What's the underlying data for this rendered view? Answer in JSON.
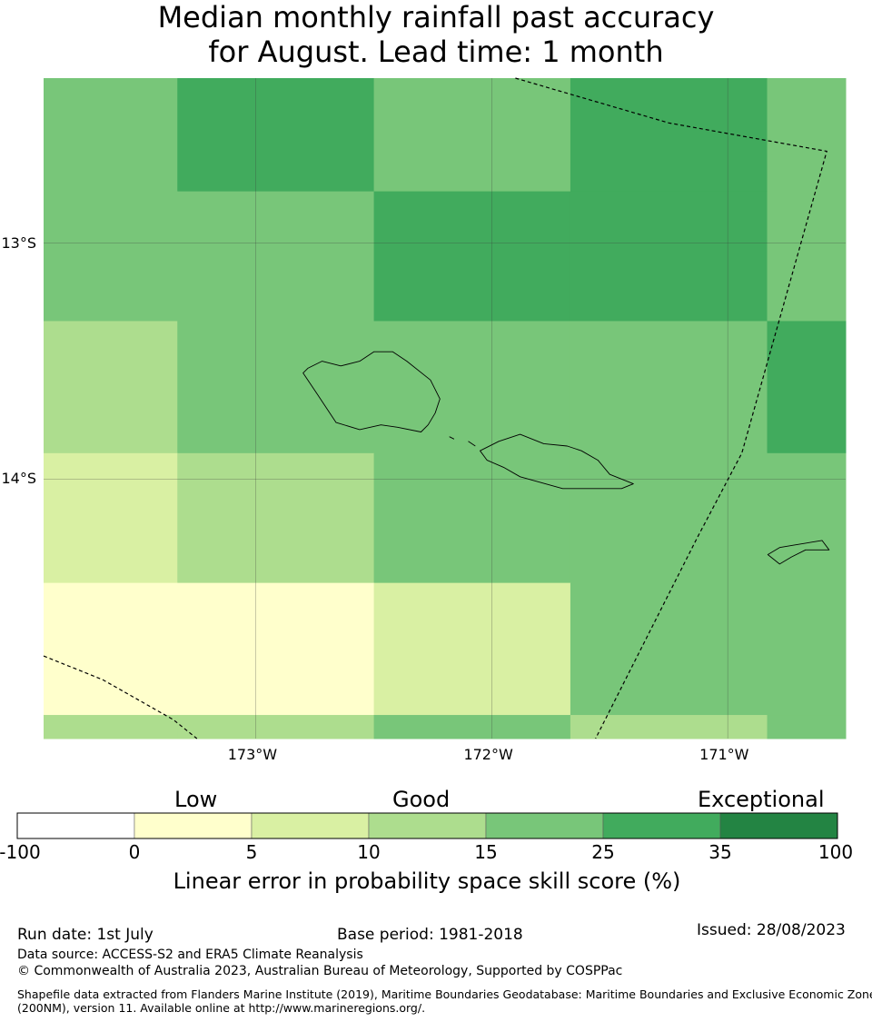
{
  "title": {
    "line1": "Median monthly rainfall past accuracy",
    "line2": "for August. Lead time: 1 month"
  },
  "map": {
    "extent_lon": [
      -173.9,
      -170.5
    ],
    "extent_lat": [
      -15.1,
      -12.3
    ],
    "lat_ticks": [
      {
        "value": -13,
        "label": "13°S"
      },
      {
        "value": -14,
        "label": "14°S"
      }
    ],
    "lon_ticks": [
      {
        "value": -173,
        "label": "173°W"
      },
      {
        "value": -172,
        "label": "172°W"
      },
      {
        "value": -171,
        "label": "171°W"
      }
    ],
    "grid_lon_edges": [
      -173.9,
      -173.333,
      -172.5,
      -171.667,
      -170.833,
      -170.5
    ],
    "grid_lat_edges": [
      -12.3,
      -12.78,
      -13.33,
      -13.89,
      -14.44,
      -15.0,
      -15.1
    ],
    "skill_categories": [
      [
        4,
        5,
        4,
        5,
        4
      ],
      [
        4,
        4,
        5,
        5,
        4
      ],
      [
        3,
        4,
        4,
        4,
        5
      ],
      [
        2,
        3,
        4,
        4,
        4
      ],
      [
        1,
        1,
        2,
        4,
        4
      ],
      [
        3,
        3,
        4,
        3,
        4
      ]
    ],
    "eez_boundary_east": [
      [
        -171.9,
        -12.3
      ],
      [
        -171.25,
        -12.49
      ],
      [
        -170.58,
        -12.61
      ],
      [
        -170.94,
        -13.89
      ],
      [
        -171.13,
        -14.25
      ],
      [
        -171.56,
        -15.1
      ]
    ],
    "eez_boundary_southwest": [
      [
        -173.9,
        -14.75
      ],
      [
        -173.65,
        -14.85
      ],
      [
        -173.35,
        -15.02
      ],
      [
        -173.25,
        -15.1
      ]
    ],
    "islands": {
      "savaii": [
        [
          -172.78,
          -13.53
        ],
        [
          -172.72,
          -13.5
        ],
        [
          -172.64,
          -13.52
        ],
        [
          -172.56,
          -13.5
        ],
        [
          -172.5,
          -13.46
        ],
        [
          -172.42,
          -13.46
        ],
        [
          -172.36,
          -13.5
        ],
        [
          -172.26,
          -13.58
        ],
        [
          -172.22,
          -13.66
        ],
        [
          -172.24,
          -13.72
        ],
        [
          -172.27,
          -13.77
        ],
        [
          -172.3,
          -13.8
        ],
        [
          -172.4,
          -13.78
        ],
        [
          -172.47,
          -13.77
        ],
        [
          -172.56,
          -13.79
        ],
        [
          -172.66,
          -13.76
        ],
        [
          -172.74,
          -13.64
        ],
        [
          -172.8,
          -13.55
        ],
        [
          -172.78,
          -13.53
        ]
      ],
      "upolu": [
        [
          -171.97,
          -13.84
        ],
        [
          -171.88,
          -13.81
        ],
        [
          -171.78,
          -13.85
        ],
        [
          -171.68,
          -13.86
        ],
        [
          -171.62,
          -13.88
        ],
        [
          -171.55,
          -13.92
        ],
        [
          -171.5,
          -13.98
        ],
        [
          -171.4,
          -14.02
        ],
        [
          -171.45,
          -14.04
        ],
        [
          -171.55,
          -14.04
        ],
        [
          -171.7,
          -14.04
        ],
        [
          -171.88,
          -13.99
        ],
        [
          -171.95,
          -13.95
        ],
        [
          -172.02,
          -13.92
        ],
        [
          -172.05,
          -13.88
        ],
        [
          -171.97,
          -13.84
        ]
      ],
      "tutuila": [
        [
          -170.83,
          -14.32
        ],
        [
          -170.78,
          -14.29
        ],
        [
          -170.72,
          -14.28
        ],
        [
          -170.6,
          -14.26
        ],
        [
          -170.57,
          -14.3
        ],
        [
          -170.67,
          -14.3
        ],
        [
          -170.73,
          -14.33
        ],
        [
          -170.78,
          -14.36
        ],
        [
          -170.83,
          -14.32
        ]
      ],
      "apolima": [
        [
          -172.18,
          -13.82
        ],
        [
          -172.16,
          -13.83
        ]
      ],
      "manono": [
        [
          -172.1,
          -13.84
        ],
        [
          -172.07,
          -13.86
        ]
      ]
    }
  },
  "colorbar": {
    "category_labels": [
      "Low",
      "Good",
      "Exceptional"
    ],
    "tick_labels": [
      "-100",
      "0",
      "5",
      "10",
      "15",
      "25",
      "35",
      "100"
    ],
    "colors": [
      "#ffffff",
      "#ffffcc",
      "#d9f0a3",
      "#addd8e",
      "#78c679",
      "#41ab5d",
      "#238443"
    ],
    "label": "Linear error in probability space skill score (%)"
  },
  "footer": {
    "run_date": "Run date: 1st July",
    "base_period": "Base period: 1981-2018",
    "issued": "Issued: 28/08/2023",
    "data_source": "Data source: ACCESS-S2 and ERA5 Climate Reanalysis",
    "copyright": "© Commonwealth of Australia 2023, Australian Bureau of Meteorology, Supported by COSPPac",
    "shapefile_line1": "Shapefile data extracted from Flanders Marine Institute (2019), Maritime Boundaries Geodatabase: Maritime Boundaries and Exclusive Economic Zones",
    "shapefile_line2": "(200NM), version 11. Available online at http://www.marineregions.org/."
  }
}
